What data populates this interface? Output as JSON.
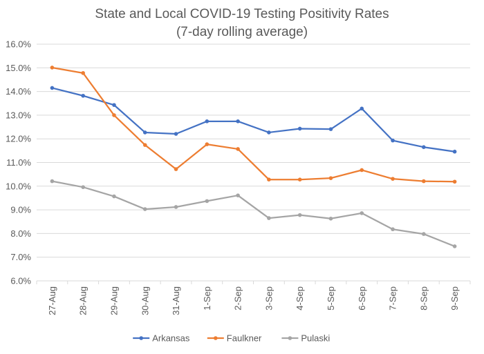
{
  "chart_data": {
    "type": "line",
    "title": "State and Local COVID-19 Testing Positivity Rates",
    "subtitle": "(7-day rolling average)",
    "xlabel": "",
    "ylabel": "",
    "ylim": [
      6.0,
      16.0
    ],
    "ytick_step": 1.0,
    "ytick_labels": [
      "6.0%",
      "7.0%",
      "8.0%",
      "9.0%",
      "10.0%",
      "11.0%",
      "12.0%",
      "13.0%",
      "14.0%",
      "15.0%",
      "16.0%"
    ],
    "grid": "horizontal",
    "legend_position": "bottom",
    "categories": [
      "27-Aug",
      "28-Aug",
      "29-Aug",
      "30-Aug",
      "31-Aug",
      "1-Sep",
      "2-Sep",
      "3-Sep",
      "4-Sep",
      "5-Sep",
      "6-Sep",
      "7-Sep",
      "8-Sep",
      "9-Sep"
    ],
    "series": [
      {
        "name": "Arkansas",
        "color": "#4472C4",
        "values": [
          14.15,
          13.82,
          13.43,
          12.27,
          12.21,
          12.74,
          12.74,
          12.27,
          12.43,
          12.41,
          13.28,
          11.93,
          11.65,
          11.46
        ]
      },
      {
        "name": "Faulkner",
        "color": "#ED7D31",
        "values": [
          15.01,
          14.78,
          13.0,
          11.74,
          10.72,
          11.77,
          11.57,
          10.28,
          10.28,
          10.34,
          10.68,
          10.31,
          10.21,
          10.19
        ]
      },
      {
        "name": "Pulaski",
        "color": "#A5A5A5",
        "values": [
          10.21,
          9.96,
          9.57,
          9.03,
          9.12,
          9.37,
          9.61,
          8.65,
          8.78,
          8.63,
          8.86,
          8.18,
          7.98,
          7.46
        ]
      }
    ]
  }
}
